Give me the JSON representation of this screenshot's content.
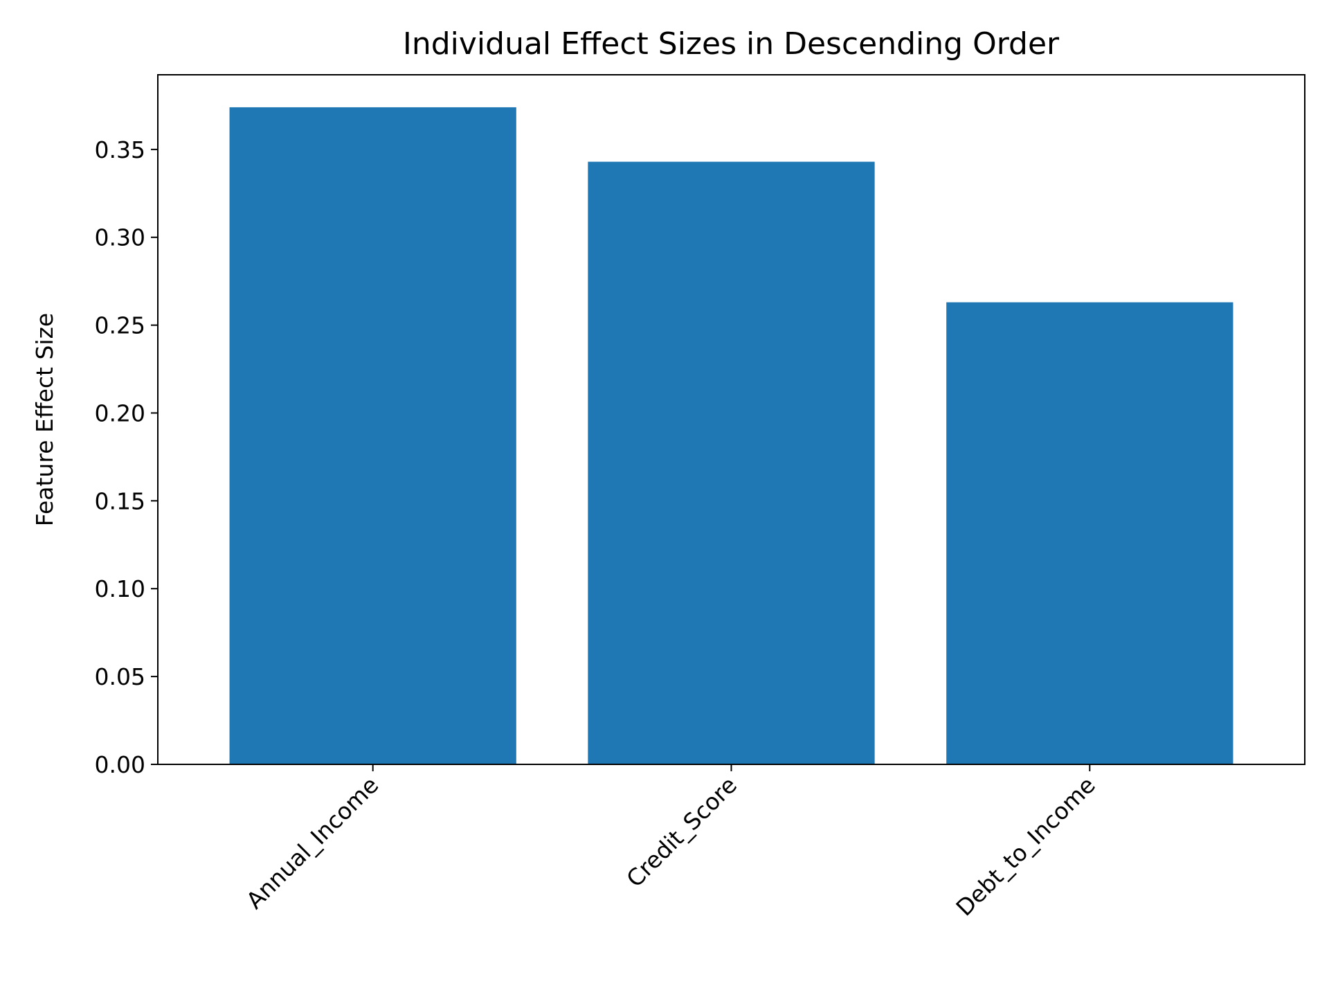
{
  "chart_data": {
    "type": "bar",
    "title": "Individual Effect Sizes in Descending Order",
    "xlabel": "",
    "ylabel": "Feature Effect Size",
    "categories": [
      "Annual_Income",
      "Credit_Score",
      "Debt_to_Income"
    ],
    "values": [
      0.374,
      0.343,
      0.263
    ],
    "ylim": [
      0,
      0.3925
    ],
    "yticks": [
      "0.00",
      "0.05",
      "0.10",
      "0.15",
      "0.20",
      "0.25",
      "0.30",
      "0.35"
    ],
    "ytick_values": [
      0,
      0.05,
      0.1,
      0.15,
      0.2,
      0.25,
      0.3,
      0.35
    ],
    "xtick_rotation_deg": 45,
    "grid": false,
    "legend": "none",
    "bar_color": "#1f77b4"
  }
}
